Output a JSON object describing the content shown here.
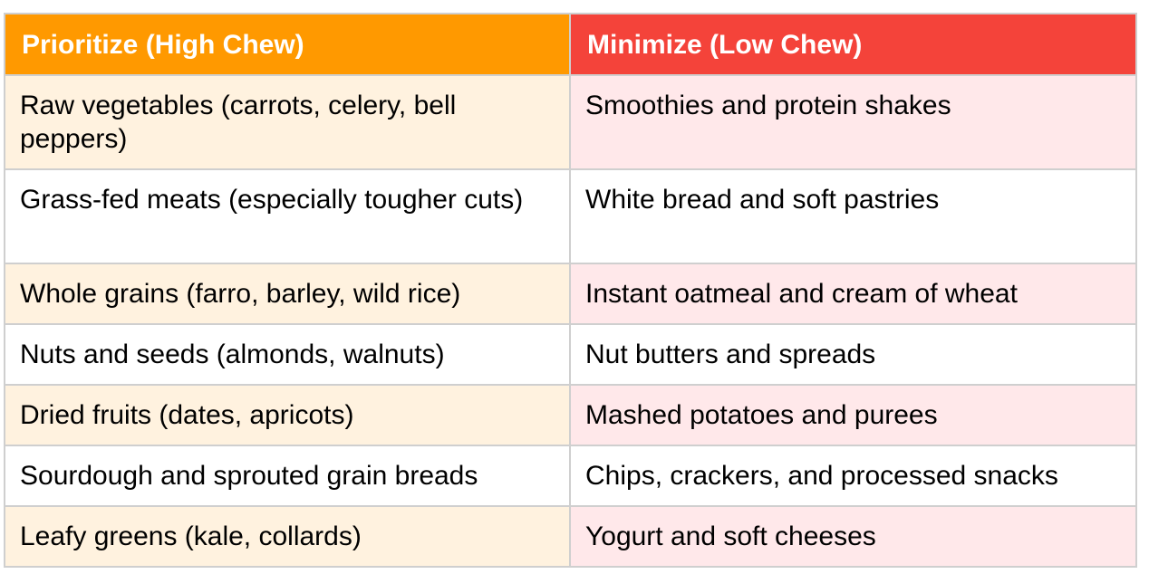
{
  "table": {
    "header": {
      "high": "Prioritize (High Chew)",
      "low": "Minimize (Low Chew)"
    },
    "colors": {
      "header_high": "#ff9900",
      "header_low": "#f4433a",
      "row_high_shade": "#fff2df",
      "row_low_shade": "#ffe8ea",
      "border": "#cfcfcf"
    },
    "rows": [
      {
        "high": "Raw vegetables (carrots, celery, bell peppers)",
        "low": "Smoothies and protein shakes"
      },
      {
        "high": "Grass-fed meats (especially tougher cuts)",
        "low": "White bread and soft pastries"
      },
      {
        "high": "Whole grains (farro, barley, wild rice)",
        "low": "Instant oatmeal and cream of wheat"
      },
      {
        "high": "Nuts and seeds (almonds, walnuts)",
        "low": "Nut butters and spreads"
      },
      {
        "high": "Dried fruits (dates, apricots)",
        "low": "Mashed potatoes and purees"
      },
      {
        "high": "Sourdough and sprouted grain breads",
        "low": "Chips, crackers, and processed snacks"
      },
      {
        "high": "Leafy greens (kale, collards)",
        "low": "Yogurt and soft cheeses"
      }
    ]
  }
}
